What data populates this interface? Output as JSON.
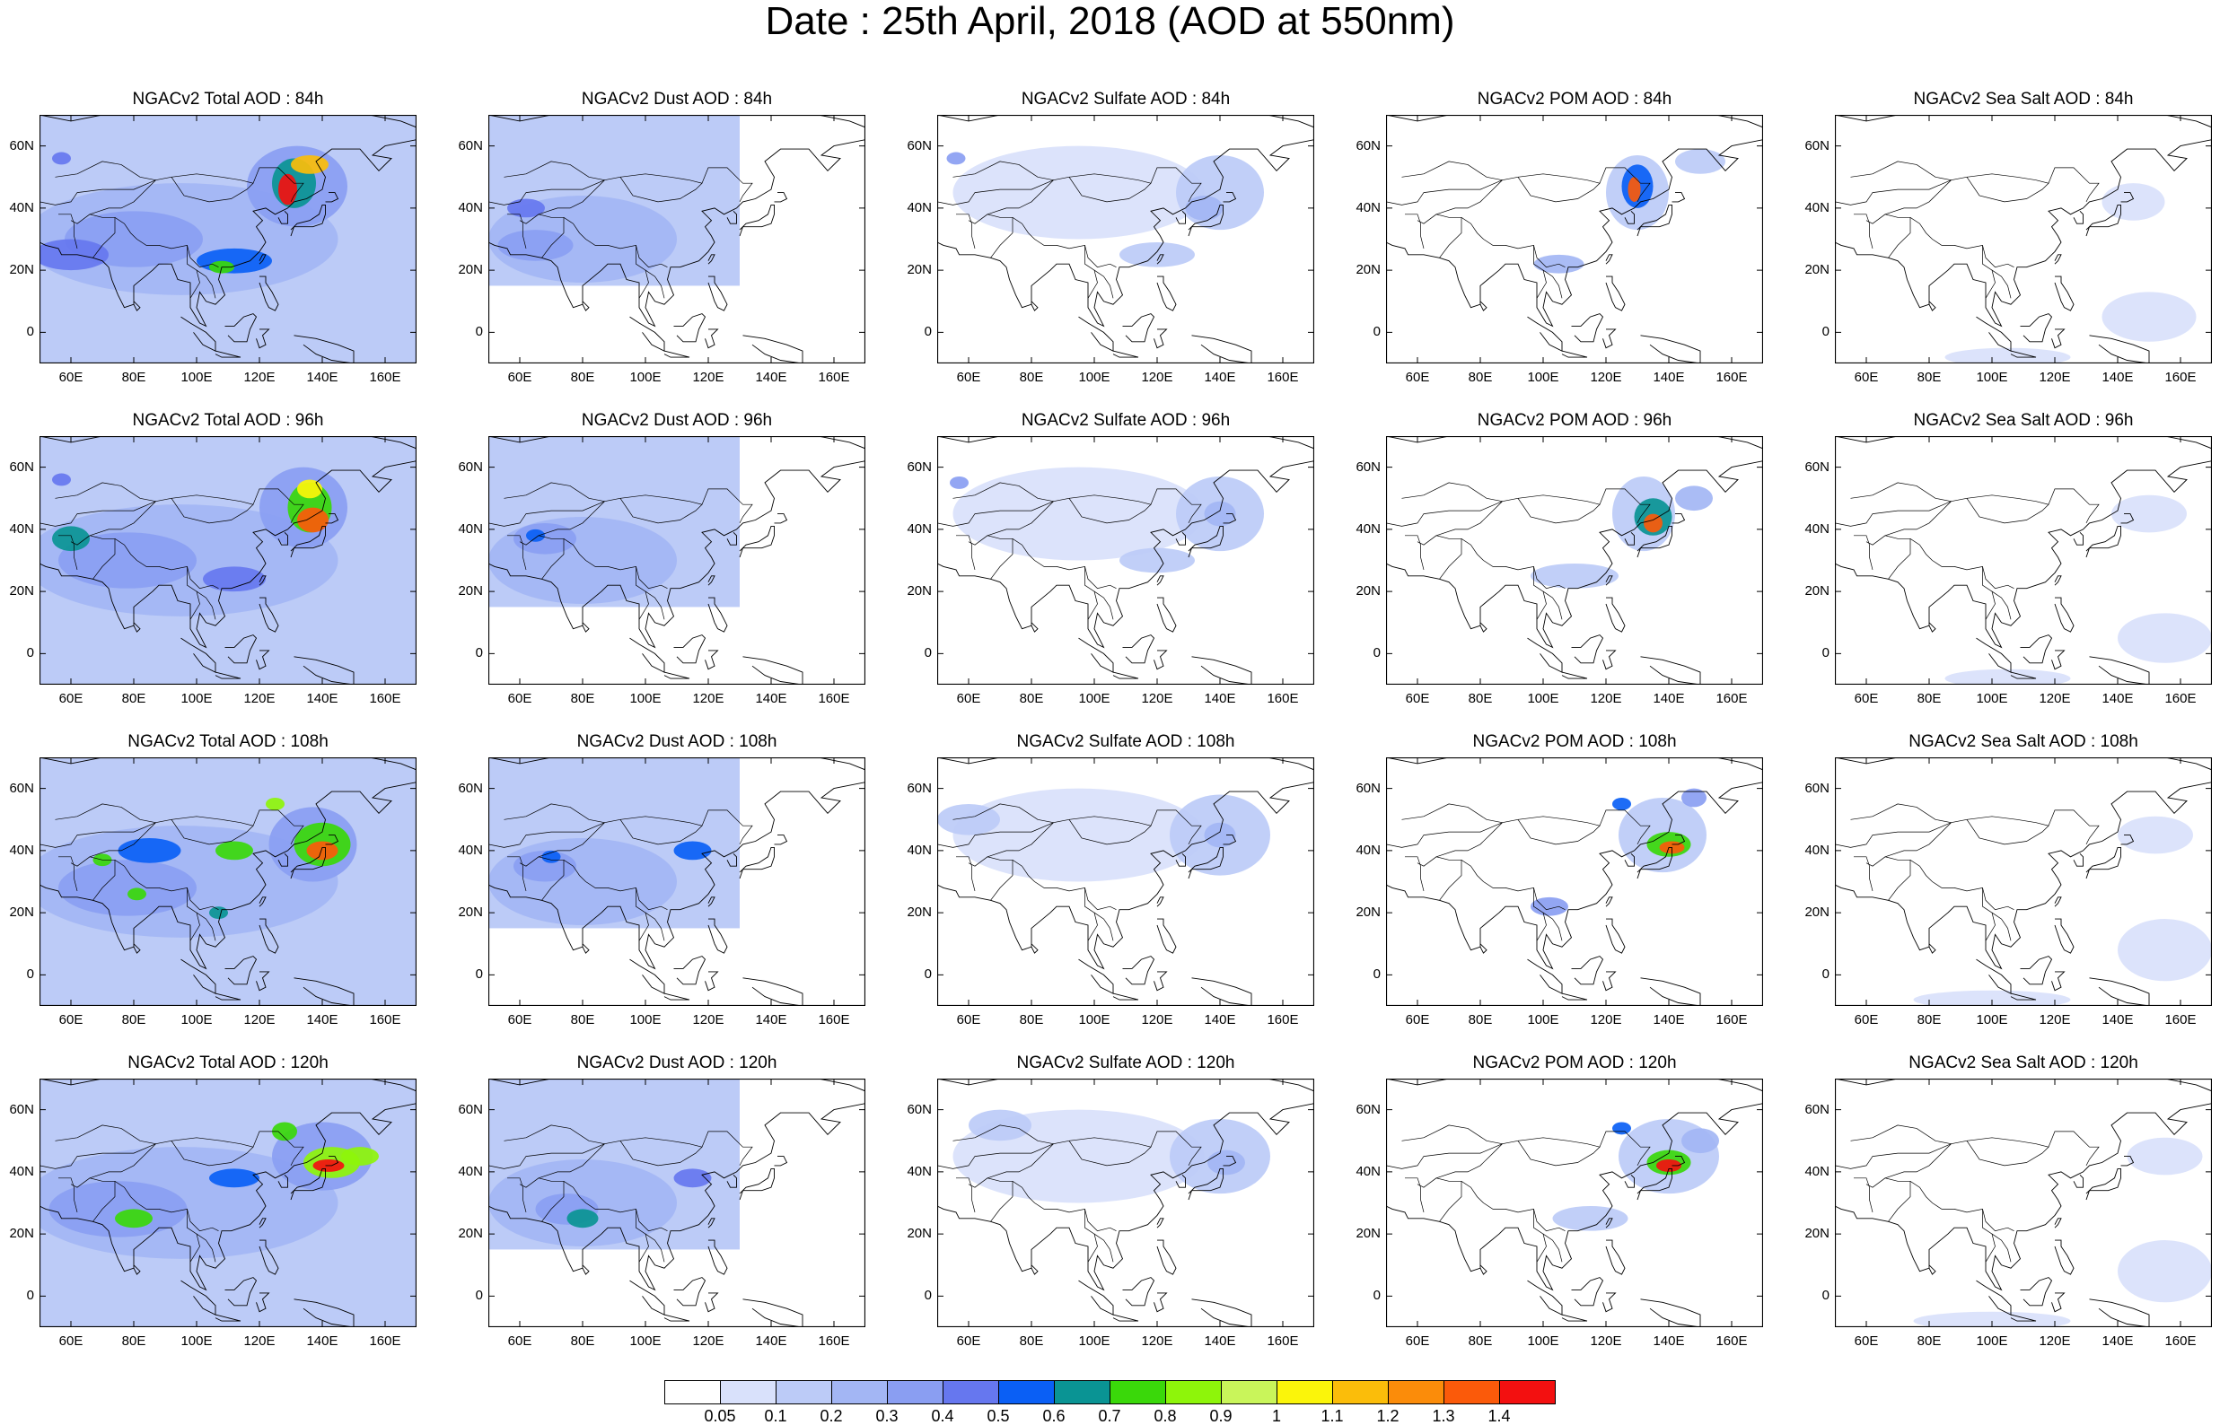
{
  "title": "Date : 25th April, 2018 (AOD at 550nm)",
  "rows": [
    {
      "panels": [
        {
          "title": "NGACv2 Total AOD : 84h",
          "species": "total"
        },
        {
          "title": "NGACv2 Dust AOD : 84h",
          "species": "dust"
        },
        {
          "title": "NGACv2 Sulfate AOD : 84h",
          "species": "sulfate"
        },
        {
          "title": "NGACv2 POM AOD : 84h",
          "species": "pom"
        },
        {
          "title": "NGACv2 Sea Salt AOD : 84h",
          "species": "seasalt"
        }
      ]
    },
    {
      "panels": [
        {
          "title": "NGACv2 Total AOD : 96h",
          "species": "total"
        },
        {
          "title": "NGACv2 Dust AOD : 96h",
          "species": "dust"
        },
        {
          "title": "NGACv2 Sulfate AOD : 96h",
          "species": "sulfate"
        },
        {
          "title": "NGACv2 POM AOD : 96h",
          "species": "pom"
        },
        {
          "title": "NGACv2 Sea Salt AOD : 96h",
          "species": "seasalt"
        }
      ]
    },
    {
      "panels": [
        {
          "title": "NGACv2 Total AOD : 108h",
          "species": "total"
        },
        {
          "title": "NGACv2 Dust AOD : 108h",
          "species": "dust"
        },
        {
          "title": "NGACv2 Sulfate AOD : 108h",
          "species": "sulfate"
        },
        {
          "title": "NGACv2 POM AOD : 108h",
          "species": "pom"
        },
        {
          "title": "NGACv2 Sea Salt AOD : 108h",
          "species": "seasalt"
        }
      ]
    },
    {
      "panels": [
        {
          "title": "NGACv2 Total AOD : 120h",
          "species": "total"
        },
        {
          "title": "NGACv2 Dust AOD : 120h",
          "species": "dust"
        },
        {
          "title": "NGACv2 Sulfate AOD : 120h",
          "species": "sulfate"
        },
        {
          "title": "NGACv2 POM AOD : 120h",
          "species": "pom"
        },
        {
          "title": "NGACv2 Sea Salt  AOD : 120h",
          "species": "seasalt"
        }
      ]
    }
  ],
  "lat_ticks": [
    "60N",
    "40N",
    "20N",
    "0"
  ],
  "lon_ticks": [
    "60E",
    "80E",
    "100E",
    "120E",
    "140E",
    "160E"
  ],
  "colorbar": {
    "labels": [
      "0.05",
      "0.1",
      "0.2",
      "0.3",
      "0.4",
      "0.5",
      "0.6",
      "0.7",
      "0.8",
      "0.9",
      "1",
      "1.1",
      "1.2",
      "1.3",
      "1.4"
    ],
    "colors": [
      "#ffffff",
      "#d9e1fb",
      "#bccbf7",
      "#a3b6f4",
      "#8a9ef2",
      "#6677ef",
      "#0a5ff5",
      "#0a9494",
      "#3ad80a",
      "#8ef50a",
      "#c9f55a",
      "#fbf50a",
      "#fbbd0a",
      "#fb8c0a",
      "#fb5a0a",
      "#f31010"
    ]
  }
}
